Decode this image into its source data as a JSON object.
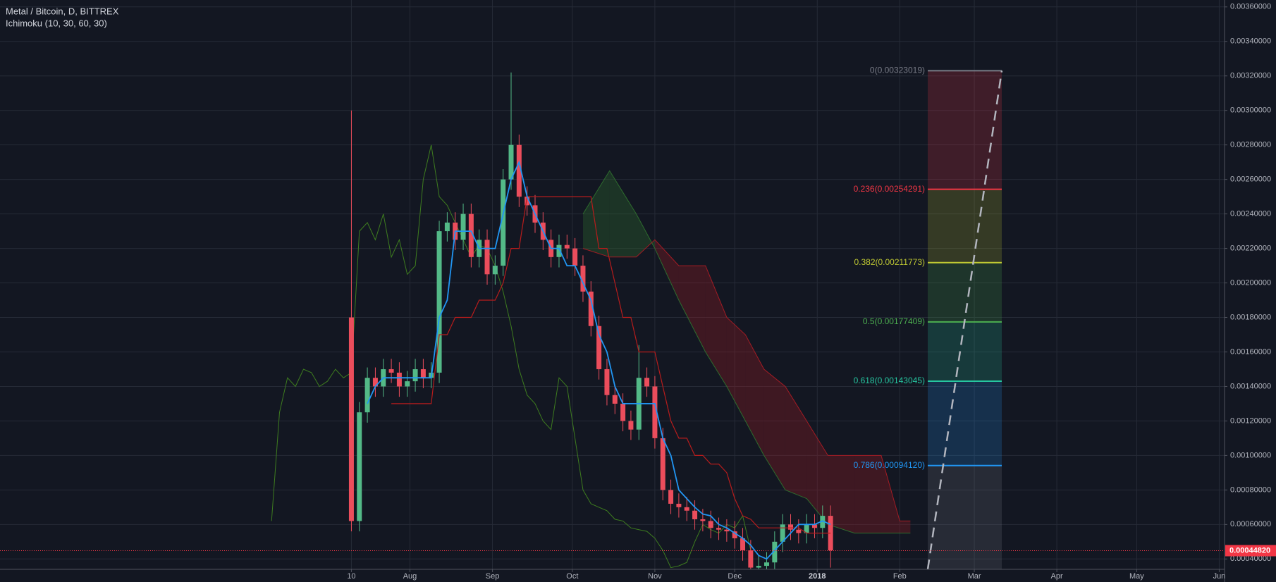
{
  "chart_data": {
    "type": "candlestick",
    "title": "Metal / Bitcoin, D, BITTREX",
    "subtitle": "Ichimoku (10, 30, 60, 30)",
    "xlim": [
      -123,
      337
    ],
    "ylim": [
      0.00034,
      0.00364
    ],
    "xticks": [
      {
        "value": 9,
        "label": "10"
      },
      {
        "value": 31,
        "label": "Aug"
      },
      {
        "value": 62,
        "label": "Sep"
      },
      {
        "value": 92,
        "label": "Oct"
      },
      {
        "value": 123,
        "label": "Nov"
      },
      {
        "value": 153,
        "label": "Dec"
      },
      {
        "value": 184,
        "label": "2018"
      },
      {
        "value": 215,
        "label": "Feb"
      },
      {
        "value": 243,
        "label": "Mar"
      },
      {
        "value": 274,
        "label": "Apr"
      },
      {
        "value": 304,
        "label": "May"
      },
      {
        "value": 335,
        "label": "Jun"
      }
    ],
    "yticks": [
      {
        "value": 0.0004,
        "label": "0.00040000"
      },
      {
        "value": 0.0006,
        "label": "0.00060000"
      },
      {
        "value": 0.0008,
        "label": "0.00080000"
      },
      {
        "value": 0.001,
        "label": "0.00100000"
      },
      {
        "value": 0.0012,
        "label": "0.00120000"
      },
      {
        "value": 0.0014,
        "label": "0.00140000"
      },
      {
        "value": 0.0016,
        "label": "0.00160000"
      },
      {
        "value": 0.0018,
        "label": "0.00180000"
      },
      {
        "value": 0.002,
        "label": "0.00200000"
      },
      {
        "value": 0.0022,
        "label": "0.00220000"
      },
      {
        "value": 0.0024,
        "label": "0.00240000"
      },
      {
        "value": 0.0026,
        "label": "0.00260000"
      },
      {
        "value": 0.0028,
        "label": "0.00280000"
      },
      {
        "value": 0.003,
        "label": "0.00300000"
      },
      {
        "value": 0.0032,
        "label": "0.00320000"
      },
      {
        "value": 0.0034,
        "label": "0.00340000"
      },
      {
        "value": 0.0036,
        "label": "0.00360000"
      }
    ],
    "grid": true,
    "up_color": "#53b987",
    "down_color": "#eb4d5c",
    "candles": {
      "x": [
        9,
        12,
        15,
        18,
        21,
        24,
        27,
        30,
        33,
        36,
        39,
        42,
        45,
        48,
        51,
        54,
        57,
        60,
        63,
        66,
        69,
        72,
        75,
        78,
        81,
        84,
        87,
        90,
        93,
        96,
        99,
        102,
        105,
        108,
        111,
        114,
        117,
        120,
        123,
        126,
        129,
        132,
        135,
        138,
        141,
        144,
        147,
        150,
        153,
        156,
        159,
        162,
        165,
        168,
        171,
        174,
        177,
        180,
        183,
        186,
        189
      ],
      "open": [
        0.0018,
        0.00062,
        0.00125,
        0.00145,
        0.0014,
        0.0015,
        0.00148,
        0.0014,
        0.00143,
        0.0015,
        0.00145,
        0.00148,
        0.0023,
        0.00235,
        0.00225,
        0.0024,
        0.00215,
        0.00225,
        0.00205,
        0.0021,
        0.0026,
        0.0028,
        0.0025,
        0.00245,
        0.00235,
        0.00225,
        0.00215,
        0.00222,
        0.0022,
        0.0021,
        0.00195,
        0.00175,
        0.0015,
        0.00135,
        0.0013,
        0.0012,
        0.00115,
        0.00145,
        0.0014,
        0.0011,
        0.0008,
        0.00072,
        0.0007,
        0.00068,
        0.00063,
        0.00062,
        0.00058,
        0.00057,
        0.00056,
        0.00052,
        0.00045,
        0.00035,
        0.00036,
        0.00038,
        0.0005,
        0.0006,
        0.00057,
        0.00055,
        0.0006,
        0.00058,
        0.00065
      ],
      "high": [
        0.003,
        0.00131,
        0.00151,
        0.00151,
        0.00156,
        0.00156,
        0.00154,
        0.00149,
        0.00156,
        0.00156,
        0.00154,
        0.00236,
        0.00241,
        0.00241,
        0.00246,
        0.00246,
        0.00231,
        0.00231,
        0.00216,
        0.00266,
        0.00322,
        0.00286,
        0.00256,
        0.00251,
        0.00241,
        0.00231,
        0.00228,
        0.00228,
        0.00226,
        0.00216,
        0.00201,
        0.00181,
        0.00156,
        0.00141,
        0.00136,
        0.00126,
        0.00164,
        0.00151,
        0.00146,
        0.00116,
        0.00086,
        0.00078,
        0.00076,
        0.00074,
        0.00069,
        0.00068,
        0.00064,
        0.00063,
        0.00062,
        0.00058,
        0.00051,
        0.00042,
        0.00044,
        0.00056,
        0.00066,
        0.00066,
        0.00063,
        0.00066,
        0.00066,
        0.00071,
        0.00071
      ],
      "low": [
        0.00056,
        0.00056,
        0.00119,
        0.00134,
        0.00134,
        0.00142,
        0.00134,
        0.00134,
        0.00137,
        0.00139,
        0.00139,
        0.00142,
        0.00224,
        0.00219,
        0.00219,
        0.00209,
        0.00209,
        0.00199,
        0.00199,
        0.00204,
        0.00254,
        0.00244,
        0.00239,
        0.00229,
        0.00219,
        0.00209,
        0.00209,
        0.00214,
        0.00204,
        0.00189,
        0.00169,
        0.00144,
        0.00129,
        0.00124,
        0.00114,
        0.00109,
        0.00109,
        0.00134,
        0.00104,
        0.00074,
        0.00066,
        0.00064,
        0.00062,
        0.00057,
        0.00056,
        0.00052,
        0.00051,
        0.0005,
        0.00046,
        0.00039,
        0.00029,
        0.00029,
        0.0003,
        0.00032,
        0.00044,
        0.00051,
        0.00049,
        0.00049,
        0.00052,
        0.00052,
        0.00035
      ],
      "close": [
        0.00062,
        0.00125,
        0.00145,
        0.0014,
        0.0015,
        0.00148,
        0.0014,
        0.00143,
        0.0015,
        0.00145,
        0.00148,
        0.0023,
        0.00235,
        0.00225,
        0.0024,
        0.00215,
        0.00225,
        0.00205,
        0.0021,
        0.0026,
        0.0028,
        0.0025,
        0.00245,
        0.00235,
        0.00225,
        0.00215,
        0.00222,
        0.0022,
        0.0021,
        0.00195,
        0.00175,
        0.0015,
        0.00135,
        0.0013,
        0.0012,
        0.00115,
        0.00145,
        0.0014,
        0.0011,
        0.0008,
        0.00072,
        0.0007,
        0.00068,
        0.00063,
        0.00062,
        0.00058,
        0.00057,
        0.00056,
        0.00052,
        0.00045,
        0.00035,
        0.00036,
        0.00038,
        0.0005,
        0.0006,
        0.00057,
        0.00055,
        0.0006,
        0.00058,
        0.00065,
        0.00045
      ]
    },
    "ichimoku": {
      "tenkan_color": "#2196f3",
      "kijun_color": "#b71c1c",
      "lagging_color": "#3e7d1f",
      "span_a_color": "#2e6b2e",
      "span_b_color": "#a31c24",
      "tenkan": [
        null,
        null,
        0.0013,
        0.0014,
        0.00145,
        0.00145,
        0.00145,
        0.00145,
        0.00145,
        0.00145,
        0.00145,
        0.0018,
        0.0019,
        0.0023,
        0.0023,
        0.0023,
        0.0022,
        0.0022,
        0.0022,
        0.0024,
        0.0026,
        0.0027,
        0.0025,
        0.0024,
        0.0023,
        0.0022,
        0.0022,
        0.0021,
        0.0021,
        0.002,
        0.0019,
        0.0017,
        0.0016,
        0.0014,
        0.0013,
        0.0013,
        0.0013,
        0.0013,
        0.0013,
        0.0011,
        0.001,
        0.0008,
        0.00075,
        0.0007,
        0.00066,
        0.00065,
        0.0006,
        0.00058,
        0.00055,
        0.00052,
        0.00048,
        0.00042,
        0.0004,
        0.00045,
        0.0005,
        0.00055,
        0.0006,
        0.0006,
        0.0006,
        0.00062,
        0.0006
      ],
      "kijun": [
        null,
        null,
        null,
        null,
        null,
        0.0013,
        0.0013,
        0.0013,
        0.0013,
        0.0013,
        0.0013,
        0.0017,
        0.0017,
        0.0018,
        0.0018,
        0.0018,
        0.0019,
        0.0019,
        0.0019,
        0.002,
        0.0022,
        0.0022,
        0.0025,
        0.0025,
        0.0025,
        0.0025,
        0.0025,
        0.0025,
        0.0025,
        0.0025,
        0.0025,
        0.0022,
        0.0022,
        0.002,
        0.0018,
        0.0018,
        0.0016,
        0.0016,
        0.0016,
        0.0014,
        0.0012,
        0.0011,
        0.0011,
        0.001,
        0.001,
        0.00095,
        0.00095,
        0.0009,
        0.00075,
        0.00065,
        0.00063,
        0.00058,
        0.00058,
        0.00058,
        0.00058,
        0.00058,
        0.00058,
        0.00055,
        0.00055,
        0.00055,
        0.00055
      ],
      "lagging": {
        "x": [
          -21,
          -18,
          -15,
          -12,
          -9,
          -6,
          -3,
          0,
          3,
          6,
          9,
          12,
          15,
          18,
          21,
          24,
          27,
          30,
          33,
          36,
          39,
          42,
          45,
          48,
          51,
          54,
          57,
          60,
          63,
          66,
          69,
          72,
          75,
          78,
          81,
          84,
          87,
          90,
          93,
          96,
          99,
          102,
          105,
          108,
          111,
          114,
          117,
          120,
          123,
          126,
          129,
          132,
          135,
          138,
          141,
          144,
          147,
          150,
          153,
          156,
          159
        ],
        "values": [
          0.00062,
          0.00125,
          0.00145,
          0.0014,
          0.0015,
          0.00148,
          0.0014,
          0.00143,
          0.0015,
          0.00145,
          0.00148,
          0.0023,
          0.00235,
          0.00225,
          0.0024,
          0.00215,
          0.00225,
          0.00205,
          0.0021,
          0.0026,
          0.0028,
          0.0025,
          0.00245,
          0.00235,
          0.00225,
          0.00215,
          0.00222,
          0.0022,
          0.0021,
          0.00195,
          0.00175,
          0.0015,
          0.00135,
          0.0013,
          0.0012,
          0.00115,
          0.00145,
          0.0014,
          0.0011,
          0.0008,
          0.00072,
          0.0007,
          0.00068,
          0.00063,
          0.00062,
          0.00058,
          0.00057,
          0.00056,
          0.00052,
          0.00045,
          0.00035,
          0.00036,
          0.00038,
          0.0005,
          0.0006,
          0.00057,
          0.00055,
          0.0006,
          0.00058,
          0.00065,
          0.00045
        ]
      },
      "cloud": {
        "x": [
          96,
          106,
          116,
          123,
          132,
          142,
          150,
          157,
          164,
          172,
          180,
          188,
          198,
          208,
          215,
          219
        ],
        "span_a": [
          0.0024,
          0.00265,
          0.0024,
          0.0022,
          0.0019,
          0.0016,
          0.0014,
          0.0012,
          0.001,
          0.0008,
          0.00075,
          0.0006,
          0.00055,
          0.00055,
          0.00055,
          0.00055
        ],
        "span_b": [
          0.0022,
          0.00215,
          0.00215,
          0.00225,
          0.0021,
          0.0021,
          0.0018,
          0.0017,
          0.0015,
          0.0014,
          0.0012,
          0.001,
          0.001,
          0.001,
          0.00062,
          0.00062
        ]
      }
    },
    "fib": {
      "levels": [
        {
          "label": "0(0.00323019)",
          "value": 0.00323019,
          "color": "#787b86"
        },
        {
          "label": "0.236(0.00254291)",
          "value": 0.00254291,
          "color": "#f23645"
        },
        {
          "label": "0.382(0.00211773)",
          "value": 0.00211773,
          "color": "#c0ca33"
        },
        {
          "label": "0.5(0.00177409)",
          "value": 0.00177409,
          "color": "#4caf50"
        },
        {
          "label": "0.618(0.00143045)",
          "value": 0.00143045,
          "color": "#26c6a0"
        },
        {
          "label": "0.786(0.00094120)",
          "value": 0.0009412,
          "color": "#2196f3"
        }
      ],
      "bottom_color": "#787b86"
    },
    "last_price": {
      "label": "0.00044820",
      "value": 0.0004482,
      "color": "#f23645"
    }
  }
}
